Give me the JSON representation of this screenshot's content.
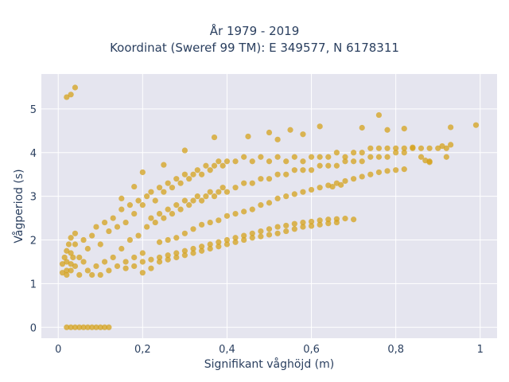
{
  "chart_data": {
    "type": "scatter",
    "title_lines": [
      "År 1979 - 2019",
      "Koordinat (Sweref 99 TM): E 349577, N 6178311"
    ],
    "xlabel": "Signifikant våghöjd (m)",
    "ylabel": "Vågperiod (s)",
    "xlim": [
      -0.04,
      1.04
    ],
    "ylim": [
      -0.25,
      5.8
    ],
    "xticks": [
      0,
      0.2,
      0.4,
      0.6,
      0.8,
      1
    ],
    "xtick_labels": [
      "0",
      "0,2",
      "0,4",
      "0,6",
      "0,8",
      "1"
    ],
    "yticks": [
      0,
      1,
      2,
      3,
      4,
      5
    ],
    "ytick_labels": [
      "0",
      "1",
      "2",
      "3",
      "4",
      "5"
    ],
    "grid": true,
    "legend": "none",
    "marker_color": "#d4a21c",
    "plot_bg": "#e5e5ef",
    "series": [
      {
        "points": [
          [
            0.02,
            5.27
          ],
          [
            0.03,
            5.33
          ],
          [
            0.04,
            5.49
          ],
          [
            0.02,
            0
          ],
          [
            0.03,
            0
          ],
          [
            0.04,
            0
          ],
          [
            0.05,
            0
          ],
          [
            0.06,
            0
          ],
          [
            0.07,
            0
          ],
          [
            0.08,
            0
          ],
          [
            0.09,
            0
          ],
          [
            0.1,
            0
          ],
          [
            0.11,
            0
          ],
          [
            0.12,
            0
          ],
          [
            0.02,
            1.2
          ],
          [
            0.02,
            1.5
          ],
          [
            0.03,
            1.3
          ],
          [
            0.03,
            1.7
          ],
          [
            0.04,
            1.4
          ],
          [
            0.04,
            1.9
          ],
          [
            0.05,
            1.2
          ],
          [
            0.05,
            1.6
          ],
          [
            0.06,
            1.5
          ],
          [
            0.06,
            2.0
          ],
          [
            0.07,
            1.3
          ],
          [
            0.07,
            1.8
          ],
          [
            0.08,
            1.2
          ],
          [
            0.08,
            2.1
          ],
          [
            0.09,
            1.4
          ],
          [
            0.09,
            2.3
          ],
          [
            0.1,
            1.2
          ],
          [
            0.1,
            1.9
          ],
          [
            0.11,
            1.5
          ],
          [
            0.11,
            2.4
          ],
          [
            0.12,
            1.3
          ],
          [
            0.12,
            2.2
          ],
          [
            0.13,
            1.6
          ],
          [
            0.13,
            2.5
          ],
          [
            0.14,
            1.4
          ],
          [
            0.14,
            2.3
          ],
          [
            0.15,
            1.8
          ],
          [
            0.15,
            2.7
          ],
          [
            0.16,
            1.5
          ],
          [
            0.16,
            2.4
          ],
          [
            0.17,
            2.0
          ],
          [
            0.17,
            2.8
          ],
          [
            0.18,
            1.6
          ],
          [
            0.18,
            2.6
          ],
          [
            0.19,
            2.1
          ],
          [
            0.19,
            2.9
          ],
          [
            0.2,
            1.7
          ],
          [
            0.2,
            2.8
          ],
          [
            0.21,
            2.3
          ],
          [
            0.21,
            3.0
          ],
          [
            0.22,
            2.5
          ],
          [
            0.22,
            3.1
          ],
          [
            0.23,
            2.4
          ],
          [
            0.23,
            2.9
          ],
          [
            0.24,
            2.6
          ],
          [
            0.24,
            3.2
          ],
          [
            0.25,
            2.5
          ],
          [
            0.25,
            3.1
          ],
          [
            0.26,
            2.7
          ],
          [
            0.26,
            3.3
          ],
          [
            0.27,
            2.6
          ],
          [
            0.27,
            3.2
          ],
          [
            0.28,
            2.8
          ],
          [
            0.28,
            3.4
          ],
          [
            0.29,
            2.7
          ],
          [
            0.29,
            3.3
          ],
          [
            0.3,
            2.9
          ],
          [
            0.3,
            3.5
          ],
          [
            0.31,
            2.8
          ],
          [
            0.31,
            3.4
          ],
          [
            0.32,
            2.9
          ],
          [
            0.32,
            3.5
          ],
          [
            0.33,
            3.0
          ],
          [
            0.33,
            3.6
          ],
          [
            0.34,
            2.9
          ],
          [
            0.34,
            3.5
          ],
          [
            0.35,
            3.0
          ],
          [
            0.35,
            3.7
          ],
          [
            0.36,
            3.1
          ],
          [
            0.36,
            3.6
          ],
          [
            0.37,
            3.0
          ],
          [
            0.37,
            3.7
          ],
          [
            0.38,
            3.1
          ],
          [
            0.38,
            3.8
          ],
          [
            0.39,
            3.2
          ],
          [
            0.39,
            3.7
          ],
          [
            0.4,
            3.1
          ],
          [
            0.4,
            3.8
          ],
          [
            0.42,
            3.2
          ],
          [
            0.42,
            3.8
          ],
          [
            0.44,
            3.3
          ],
          [
            0.44,
            3.9
          ],
          [
            0.46,
            3.3
          ],
          [
            0.46,
            3.8
          ],
          [
            0.48,
            3.4
          ],
          [
            0.48,
            3.9
          ],
          [
            0.5,
            3.4
          ],
          [
            0.5,
            3.8
          ],
          [
            0.52,
            3.5
          ],
          [
            0.52,
            3.9
          ],
          [
            0.54,
            3.5
          ],
          [
            0.54,
            3.8
          ],
          [
            0.56,
            3.6
          ],
          [
            0.56,
            3.9
          ],
          [
            0.58,
            3.6
          ],
          [
            0.58,
            3.8
          ],
          [
            0.6,
            3.6
          ],
          [
            0.6,
            3.9
          ],
          [
            0.62,
            3.7
          ],
          [
            0.62,
            3.9
          ],
          [
            0.64,
            3.7
          ],
          [
            0.64,
            3.9
          ],
          [
            0.66,
            3.7
          ],
          [
            0.66,
            4.0
          ],
          [
            0.68,
            3.8
          ],
          [
            0.68,
            3.9
          ],
          [
            0.7,
            3.8
          ],
          [
            0.7,
            4.0
          ],
          [
            0.72,
            3.8
          ],
          [
            0.72,
            4.0
          ],
          [
            0.74,
            3.9
          ],
          [
            0.74,
            4.1
          ],
          [
            0.76,
            3.9
          ],
          [
            0.76,
            4.1
          ],
          [
            0.78,
            3.9
          ],
          [
            0.78,
            4.1
          ],
          [
            0.8,
            4.0
          ],
          [
            0.8,
            4.1
          ],
          [
            0.82,
            4.0
          ],
          [
            0.82,
            4.1
          ],
          [
            0.84,
            4.1
          ],
          [
            0.86,
            3.9
          ],
          [
            0.86,
            4.1
          ],
          [
            0.88,
            3.8
          ],
          [
            0.88,
            4.1
          ],
          [
            0.9,
            4.1
          ],
          [
            0.92,
            4.1
          ],
          [
            0.92,
            3.9
          ],
          [
            0.93,
            4.18
          ],
          [
            0.93,
            4.58
          ],
          [
            0.99,
            4.63
          ],
          [
            0.76,
            4.86
          ],
          [
            0.72,
            4.57
          ],
          [
            0.82,
            4.55
          ],
          [
            0.78,
            4.52
          ],
          [
            0.62,
            4.6
          ],
          [
            0.58,
            4.42
          ],
          [
            0.55,
            4.52
          ],
          [
            0.5,
            4.46
          ],
          [
            0.52,
            4.3
          ],
          [
            0.45,
            4.37
          ],
          [
            0.37,
            4.35
          ],
          [
            0.3,
            4.05
          ],
          [
            0.25,
            3.72
          ],
          [
            0.2,
            3.55
          ],
          [
            0.18,
            3.22
          ],
          [
            0.15,
            2.95
          ],
          [
            0.16,
            1.35
          ],
          [
            0.18,
            1.4
          ],
          [
            0.2,
            1.5
          ],
          [
            0.22,
            1.55
          ],
          [
            0.24,
            1.6
          ],
          [
            0.26,
            1.65
          ],
          [
            0.28,
            1.7
          ],
          [
            0.3,
            1.75
          ],
          [
            0.32,
            1.8
          ],
          [
            0.34,
            1.85
          ],
          [
            0.36,
            1.9
          ],
          [
            0.38,
            1.95
          ],
          [
            0.4,
            2.0
          ],
          [
            0.42,
            2.05
          ],
          [
            0.44,
            2.1
          ],
          [
            0.46,
            2.15
          ],
          [
            0.48,
            2.2
          ],
          [
            0.5,
            2.25
          ],
          [
            0.52,
            2.3
          ],
          [
            0.54,
            2.33
          ],
          [
            0.56,
            2.37
          ],
          [
            0.58,
            2.4
          ],
          [
            0.6,
            2.42
          ],
          [
            0.62,
            2.45
          ],
          [
            0.64,
            2.47
          ],
          [
            0.66,
            2.48
          ],
          [
            0.68,
            2.49
          ],
          [
            0.7,
            2.47
          ],
          [
            0.2,
            1.25
          ],
          [
            0.22,
            1.35
          ],
          [
            0.24,
            1.5
          ],
          [
            0.26,
            1.55
          ],
          [
            0.28,
            1.6
          ],
          [
            0.3,
            1.65
          ],
          [
            0.32,
            1.7
          ],
          [
            0.34,
            1.75
          ],
          [
            0.36,
            1.8
          ],
          [
            0.38,
            1.85
          ],
          [
            0.4,
            1.9
          ],
          [
            0.42,
            1.95
          ],
          [
            0.44,
            2.0
          ],
          [
            0.46,
            2.05
          ],
          [
            0.48,
            2.08
          ],
          [
            0.5,
            2.12
          ],
          [
            0.52,
            2.15
          ],
          [
            0.54,
            2.2
          ],
          [
            0.56,
            2.25
          ],
          [
            0.58,
            2.3
          ],
          [
            0.6,
            2.32
          ],
          [
            0.62,
            2.35
          ],
          [
            0.64,
            2.38
          ],
          [
            0.66,
            2.4
          ],
          [
            0.24,
            1.95
          ],
          [
            0.26,
            2.0
          ],
          [
            0.28,
            2.05
          ],
          [
            0.3,
            2.15
          ],
          [
            0.32,
            2.25
          ],
          [
            0.34,
            2.35
          ],
          [
            0.36,
            2.4
          ],
          [
            0.38,
            2.45
          ],
          [
            0.4,
            2.55
          ],
          [
            0.42,
            2.6
          ],
          [
            0.44,
            2.65
          ],
          [
            0.46,
            2.7
          ],
          [
            0.48,
            2.8
          ],
          [
            0.5,
            2.85
          ],
          [
            0.52,
            2.95
          ],
          [
            0.54,
            3.0
          ],
          [
            0.56,
            3.05
          ],
          [
            0.58,
            3.1
          ],
          [
            0.6,
            3.15
          ],
          [
            0.62,
            3.2
          ],
          [
            0.64,
            3.25
          ],
          [
            0.66,
            3.3
          ],
          [
            0.68,
            3.35
          ],
          [
            0.7,
            3.4
          ],
          [
            0.72,
            3.45
          ],
          [
            0.74,
            3.5
          ],
          [
            0.76,
            3.55
          ],
          [
            0.78,
            3.58
          ],
          [
            0.8,
            3.6
          ],
          [
            0.82,
            3.62
          ],
          [
            0.65,
            3.22
          ],
          [
            0.67,
            3.26
          ],
          [
            0.87,
            3.82
          ],
          [
            0.88,
            3.78
          ],
          [
            0.91,
            4.15
          ],
          [
            0.84,
            4.12
          ],
          [
            0.01,
            1.25
          ],
          [
            0.01,
            1.45
          ],
          [
            0.015,
            1.6
          ],
          [
            0.02,
            1.3
          ],
          [
            0.02,
            1.75
          ],
          [
            0.025,
            1.9
          ],
          [
            0.03,
            1.45
          ],
          [
            0.03,
            2.05
          ],
          [
            0.035,
            1.6
          ],
          [
            0.04,
            2.15
          ]
        ]
      }
    ]
  }
}
